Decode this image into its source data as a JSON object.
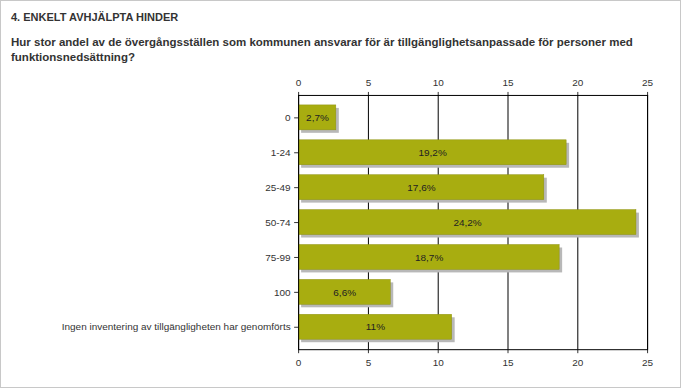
{
  "chart_data": {
    "type": "bar",
    "orientation": "horizontal",
    "title": "4. ENKELT AVHJÄLPTA HINDER",
    "subtitle": "Hur stor andel av de övergångsställen som kommunen ansvarar för är tillgänglighetsanpassade för personer med funktionsnedsättning?",
    "categories": [
      "0",
      "1-24",
      "25-49",
      "50-74",
      "75-99",
      "100",
      "Ingen inventering av tillgängligheten har genomförts"
    ],
    "values": [
      2.7,
      19.2,
      17.6,
      24.2,
      18.7,
      6.6,
      11
    ],
    "value_labels": [
      "2,7%",
      "19,2%",
      "17,6%",
      "24,2%",
      "18,7%",
      "6,6%",
      "11%"
    ],
    "color": "#a8ad10",
    "xlim": [
      0,
      25
    ],
    "xticks": [
      0,
      5,
      10,
      15,
      20,
      25
    ],
    "grid": true,
    "data_labels": true
  }
}
